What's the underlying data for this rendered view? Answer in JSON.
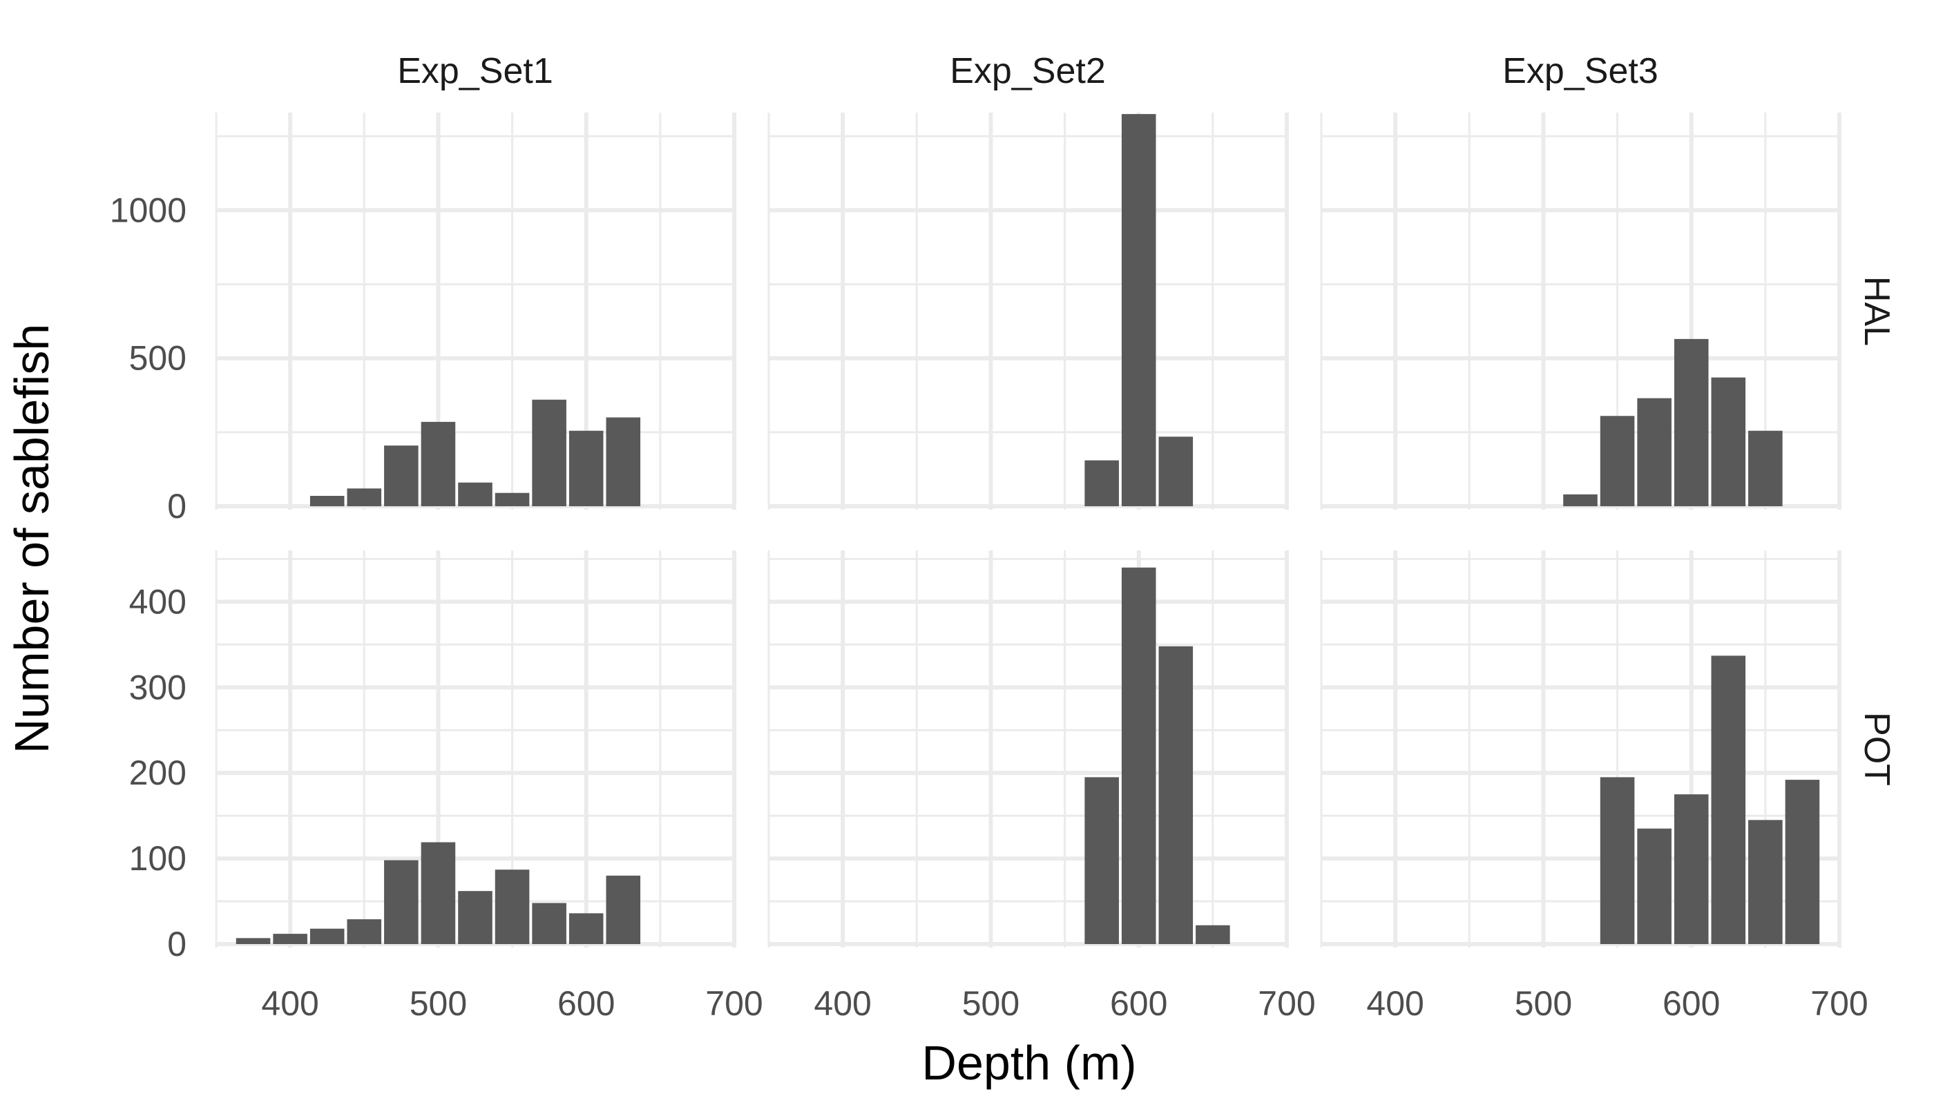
{
  "chart_data": {
    "type": "bar",
    "xlabel": "Depth (m)",
    "ylabel": "Number of sablefish",
    "columns": [
      "Exp_Set1",
      "Exp_Set2",
      "Exp_Set3"
    ],
    "rows": [
      "HAL",
      "POT"
    ],
    "x_ticks": [
      "400",
      "500",
      "600",
      "700"
    ],
    "xlim": [
      350,
      700
    ],
    "bin_width": 25,
    "row_scales": [
      {
        "row": "HAL",
        "ylim": [
          0,
          1330
        ],
        "ticks": [
          0,
          500,
          1000
        ],
        "tick_labels": [
          "0",
          "500",
          "1000"
        ]
      },
      {
        "row": "POT",
        "ylim": [
          0,
          460
        ],
        "ticks": [
          0,
          100,
          200,
          300,
          400
        ],
        "tick_labels": [
          "0",
          "100",
          "200",
          "300",
          "400"
        ]
      }
    ],
    "panels": [
      {
        "row": "HAL",
        "column": "Exp_Set1",
        "bins": [
          {
            "x": 425,
            "y": 35
          },
          {
            "x": 450,
            "y": 60
          },
          {
            "x": 475,
            "y": 205
          },
          {
            "x": 500,
            "y": 285
          },
          {
            "x": 525,
            "y": 80
          },
          {
            "x": 550,
            "y": 45
          },
          {
            "x": 575,
            "y": 360
          },
          {
            "x": 600,
            "y": 255
          },
          {
            "x": 625,
            "y": 300
          }
        ]
      },
      {
        "row": "HAL",
        "column": "Exp_Set2",
        "bins": [
          {
            "x": 575,
            "y": 155
          },
          {
            "x": 600,
            "y": 1325
          },
          {
            "x": 625,
            "y": 235
          }
        ]
      },
      {
        "row": "HAL",
        "column": "Exp_Set3",
        "bins": [
          {
            "x": 525,
            "y": 40
          },
          {
            "x": 550,
            "y": 305
          },
          {
            "x": 575,
            "y": 365
          },
          {
            "x": 600,
            "y": 565
          },
          {
            "x": 625,
            "y": 435
          },
          {
            "x": 650,
            "y": 255
          }
        ]
      },
      {
        "row": "POT",
        "column": "Exp_Set1",
        "bins": [
          {
            "x": 375,
            "y": 7
          },
          {
            "x": 400,
            "y": 12
          },
          {
            "x": 425,
            "y": 18
          },
          {
            "x": 450,
            "y": 29
          },
          {
            "x": 475,
            "y": 98
          },
          {
            "x": 500,
            "y": 119
          },
          {
            "x": 525,
            "y": 62
          },
          {
            "x": 550,
            "y": 87
          },
          {
            "x": 575,
            "y": 48
          },
          {
            "x": 600,
            "y": 36
          },
          {
            "x": 625,
            "y": 80
          }
        ]
      },
      {
        "row": "POT",
        "column": "Exp_Set2",
        "bins": [
          {
            "x": 575,
            "y": 195
          },
          {
            "x": 600,
            "y": 440
          },
          {
            "x": 625,
            "y": 348
          },
          {
            "x": 650,
            "y": 22
          }
        ]
      },
      {
        "row": "POT",
        "column": "Exp_Set3",
        "bins": [
          {
            "x": 550,
            "y": 195
          },
          {
            "x": 575,
            "y": 135
          },
          {
            "x": 600,
            "y": 175
          },
          {
            "x": 625,
            "y": 337
          },
          {
            "x": 650,
            "y": 145
          },
          {
            "x": 675,
            "y": 192
          }
        ]
      }
    ]
  }
}
